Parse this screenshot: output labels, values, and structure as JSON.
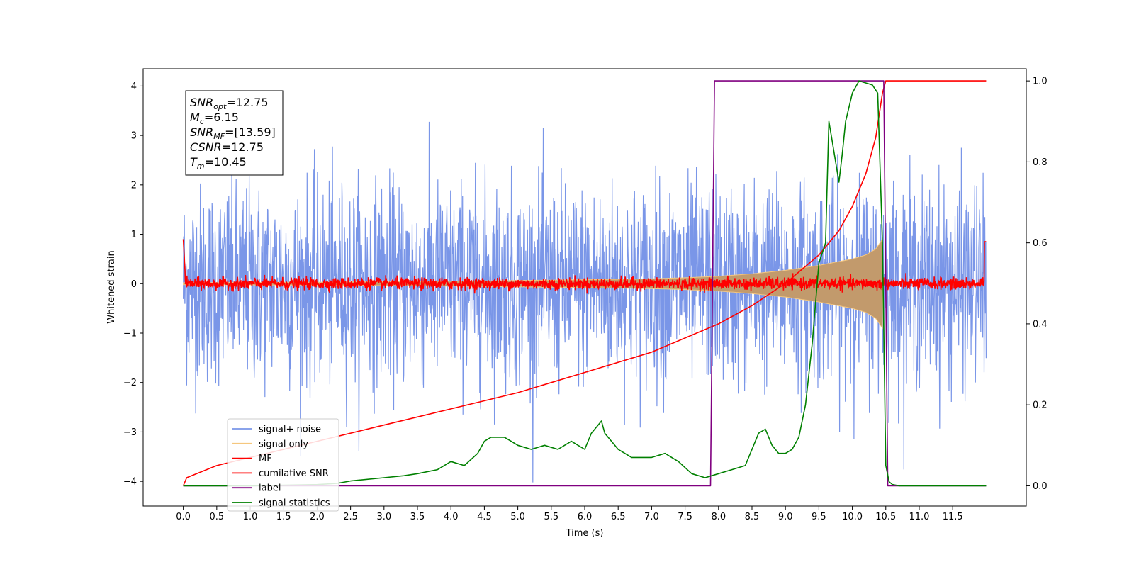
{
  "chart_data": {
    "type": "line",
    "xlabel": "Time (s)",
    "ylabel": "Whitened strain",
    "xlim": [
      -0.6,
      12.6
    ],
    "ylim": [
      -4.5,
      4.35
    ],
    "y2lim": [
      -0.05,
      1.03
    ],
    "grid": false,
    "legend_position": "lower-left",
    "x_ticks": [
      "0.0",
      "0.5",
      "1.0",
      "1.5",
      "2.0",
      "2.5",
      "3.0",
      "3.5",
      "4.0",
      "4.5",
      "5.0",
      "5.5",
      "6.0",
      "6.5",
      "7.0",
      "7.5",
      "8.0",
      "8.5",
      "9.0",
      "9.5",
      "10.0",
      "10.5",
      "11.0",
      "11.5"
    ],
    "y_ticks": [
      "4",
      "3",
      "2",
      "1",
      "0",
      "−1",
      "−2",
      "−3",
      "−4"
    ],
    "y2_ticks": [
      "1.0",
      "0.8",
      "0.6",
      "0.4",
      "0.2",
      "0.0"
    ],
    "info_box": {
      "lines": [
        {
          "main": "SNR",
          "sub": "opt",
          "value": "=12.75"
        },
        {
          "main": "M",
          "sub": "c",
          "value": "=6.15"
        },
        {
          "main": "SNR",
          "sub": "MF",
          "value": "=[13.59]"
        },
        {
          "main": "CSNR",
          "sub": "",
          "value": "=12.75"
        },
        {
          "main": "T",
          "sub": "m",
          "value": "=10.45"
        }
      ]
    },
    "series": [
      {
        "name": "signal+ noise",
        "color": "#7a96e8",
        "axis": "left",
        "style": "noise",
        "t_range": [
          0,
          12.0
        ],
        "amplitude_approx": 1.0
      },
      {
        "name": "signal only",
        "color": "#f5c77e",
        "axis": "left",
        "style": "chirp-envelope",
        "t": [
          0,
          2,
          4,
          6,
          7,
          7.5,
          8,
          8.5,
          9,
          9.5,
          10,
          10.2,
          10.35,
          10.45
        ],
        "amplitude": [
          0.02,
          0.03,
          0.05,
          0.08,
          0.1,
          0.12,
          0.15,
          0.2,
          0.27,
          0.37,
          0.5,
          0.58,
          0.7,
          0.9
        ]
      },
      {
        "name": "MF",
        "color": "#ff0000",
        "axis": "left",
        "style": "noise-small",
        "t_range": [
          0,
          12.0
        ],
        "amplitude_approx": 0.1
      },
      {
        "name": "cumilative SNR",
        "color": "#ff0000",
        "axis": "right",
        "t": [
          0,
          0.05,
          0.5,
          1,
          2,
          3,
          4,
          5,
          6,
          7,
          7.5,
          8,
          8.5,
          9,
          9.5,
          9.8,
          10,
          10.2,
          10.35,
          10.45,
          10.5,
          12.0
        ],
        "values": [
          0.0,
          0.02,
          0.05,
          0.07,
          0.11,
          0.15,
          0.19,
          0.23,
          0.28,
          0.33,
          0.365,
          0.4,
          0.445,
          0.5,
          0.57,
          0.63,
          0.69,
          0.77,
          0.86,
          0.97,
          1.0,
          1.0
        ]
      },
      {
        "name": "label",
        "color": "#800080",
        "axis": "right",
        "t": [
          0,
          7.88,
          7.94,
          10.47,
          10.53,
          12.0
        ],
        "values": [
          0,
          0,
          1,
          1,
          0,
          0
        ]
      },
      {
        "name": "signal statistics",
        "color": "#008000",
        "axis": "right",
        "t": [
          0,
          1,
          2,
          2.3,
          2.5,
          3,
          3.3,
          3.5,
          3.8,
          4.0,
          4.2,
          4.4,
          4.5,
          4.6,
          4.7,
          4.8,
          4.9,
          5.0,
          5.2,
          5.4,
          5.6,
          5.8,
          6.0,
          6.1,
          6.2,
          6.25,
          6.3,
          6.4,
          6.5,
          6.7,
          7.0,
          7.2,
          7.4,
          7.6,
          7.8,
          8.0,
          8.2,
          8.4,
          8.6,
          8.7,
          8.8,
          8.9,
          9.0,
          9.1,
          9.2,
          9.3,
          9.4,
          9.5,
          9.6,
          9.65,
          9.7,
          9.75,
          9.8,
          9.85,
          9.9,
          10.0,
          10.1,
          10.2,
          10.3,
          10.38,
          10.45,
          10.5,
          10.55,
          10.6,
          10.7,
          12.0
        ],
        "values": [
          0.0,
          0.0,
          0.003,
          0.006,
          0.012,
          0.02,
          0.025,
          0.03,
          0.04,
          0.06,
          0.05,
          0.08,
          0.11,
          0.12,
          0.12,
          0.12,
          0.11,
          0.1,
          0.09,
          0.1,
          0.09,
          0.11,
          0.09,
          0.13,
          0.15,
          0.16,
          0.13,
          0.11,
          0.09,
          0.07,
          0.07,
          0.08,
          0.06,
          0.03,
          0.02,
          0.03,
          0.04,
          0.05,
          0.13,
          0.14,
          0.1,
          0.08,
          0.08,
          0.09,
          0.12,
          0.2,
          0.35,
          0.55,
          0.6,
          0.9,
          0.85,
          0.8,
          0.75,
          0.82,
          0.9,
          0.97,
          1.0,
          0.995,
          0.99,
          0.97,
          0.6,
          0.05,
          0.01,
          0.003,
          0.0,
          0.0
        ]
      }
    ]
  }
}
